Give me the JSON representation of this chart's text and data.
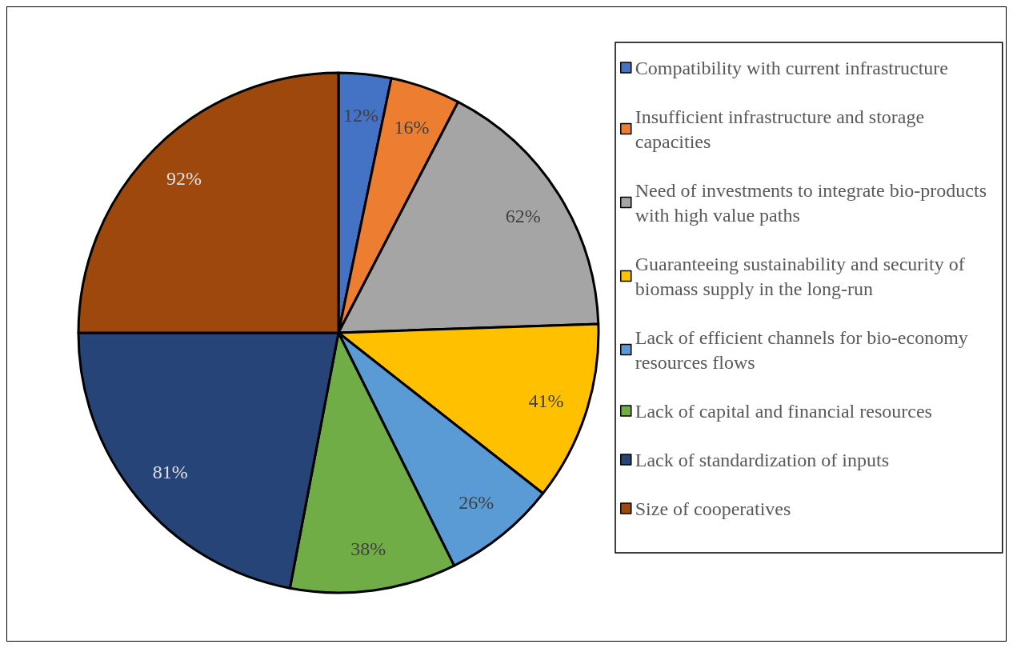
{
  "chart_data": {
    "type": "pie",
    "categories": [
      "Compatibility with current infrastructure",
      "Insufficient infrastructure and storage capacities",
      "Need of investments to integrate bio-products with high value paths",
      "Guaranteeing sustainability and security of biomass supply in the long-run",
      "Lack of efficient channels for bio-economy resources flows",
      "Lack of capital and financial resources",
      "Lack of standardization of inputs",
      "Size of cooperatives"
    ],
    "values": [
      12,
      16,
      62,
      41,
      26,
      38,
      81,
      92
    ],
    "value_labels": [
      "12%",
      "16%",
      "62%",
      "41%",
      "26%",
      "38%",
      "81%",
      "92%"
    ],
    "colors": [
      "#4472c4",
      "#ed7d31",
      "#a5a5a5",
      "#ffc000",
      "#5b9bd5",
      "#70ad47",
      "#264478",
      "#9e480e"
    ],
    "legend": "right"
  }
}
